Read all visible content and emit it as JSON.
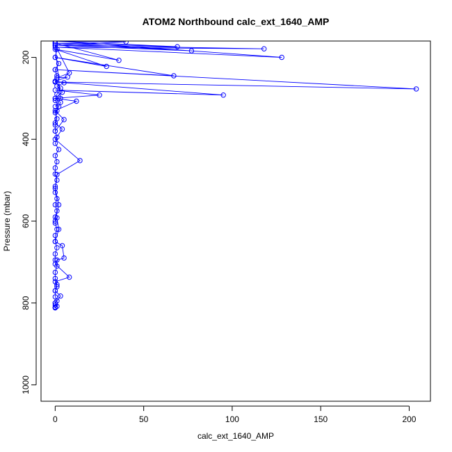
{
  "chart_data": {
    "type": "scatter",
    "title": "ATOM2 Northbound calc_ext_1640_AMP",
    "xlabel": "calc_ext_1640_AMP",
    "ylabel": "Pressure (mbar)",
    "xlim": [
      -8,
      212
    ],
    "ylim": [
      1040,
      160
    ],
    "y_reversed": true,
    "x_ticks": [
      0,
      50,
      100,
      150,
      200
    ],
    "y_ticks": [
      200,
      400,
      600,
      800,
      1000
    ],
    "grid": false,
    "legend": "none",
    "color": "#0000ff",
    "series": [
      {
        "values_x": [
          0,
          1,
          0,
          2,
          0,
          1,
          0,
          3,
          1,
          0,
          2,
          0,
          1,
          0,
          0,
          1,
          0,
          2,
          0,
          1,
          0,
          0,
          1,
          0,
          0,
          1,
          0,
          1,
          0,
          0,
          1,
          0,
          0,
          1,
          0,
          0,
          1,
          0,
          0,
          1,
          0,
          0,
          1,
          0,
          0,
          1,
          0,
          0,
          0
        ],
        "values_y": [
          165,
          180,
          200,
          215,
          230,
          245,
          260,
          275,
          290,
          305,
          320,
          335,
          350,
          365,
          380,
          395,
          410,
          425,
          440,
          455,
          470,
          485,
          500,
          515,
          530,
          545,
          560,
          575,
          590,
          605,
          620,
          635,
          650,
          665,
          680,
          695,
          710,
          725,
          740,
          755,
          770,
          785,
          795,
          800,
          805,
          808,
          810,
          811,
          812
        ]
      },
      {
        "values_x": [
          0,
          8,
          1,
          7,
          0,
          5,
          1,
          4,
          0,
          3,
          1,
          0,
          4,
          0,
          14,
          1,
          0,
          2,
          0,
          1,
          2,
          0,
          4,
          5,
          1,
          0,
          8,
          0,
          1,
          0,
          3,
          0
        ],
        "values_y": [
          170,
          238,
          250,
          248,
          258,
          262,
          270,
          285,
          300,
          310,
          330,
          360,
          375,
          400,
          452,
          486,
          520,
          560,
          600,
          592,
          620,
          650,
          660,
          690,
          695,
          705,
          737,
          748,
          760,
          770,
          783,
          800
        ]
      },
      {
        "values_x": [
          0,
          36,
          0,
          29,
          0,
          67,
          0,
          204,
          0,
          95,
          0,
          25,
          0,
          12,
          0,
          5,
          0
        ],
        "values_y": [
          165,
          207,
          180,
          222,
          200,
          245,
          230,
          277,
          260,
          292,
          280,
          292,
          300,
          307,
          330,
          352,
          380
        ]
      },
      {
        "values_x": [
          0,
          69,
          0,
          77,
          0,
          118,
          0,
          128,
          0,
          40,
          0,
          3,
          0
        ],
        "values_y": [
          160,
          174,
          165,
          184,
          170,
          179,
          175,
          200,
          160,
          162,
          170,
          300,
          320
        ]
      }
    ]
  }
}
